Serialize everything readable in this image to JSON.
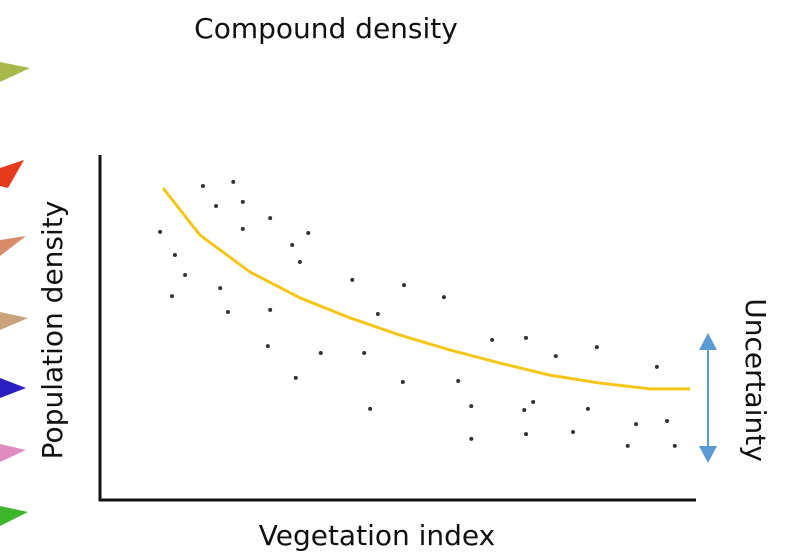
{
  "chart_data": {
    "type": "scatter",
    "title": "Compound density",
    "x_label": "Vegetation index",
    "y_label": "Population density",
    "annotation": "Uncertainty",
    "xlim": [
      0,
      100
    ],
    "ylim": [
      0,
      100
    ],
    "points": {
      "color": "#333333",
      "x": [
        10.1,
        12.6,
        14.3,
        12.1,
        17.3,
        19.5,
        22.4,
        24.0,
        24.0,
        20.2,
        21.5,
        28.6,
        32.3,
        33.6,
        35.0,
        28.6,
        28.2,
        32.9,
        37.1,
        42.4,
        46.7,
        44.4,
        45.4,
        51.1,
        50.9,
        57.8,
        60.2,
        62.4,
        62.4,
        65.9,
        71.6,
        71.3,
        72.8,
        71.6,
        76.6,
        79.5,
        82.0,
        83.5,
        88.7,
        90.1,
        93.6,
        95.3,
        96.6
      ],
      "y": [
        77.7,
        71.0,
        65.2,
        59.1,
        91.0,
        85.2,
        92.2,
        86.4,
        78.6,
        61.4,
        54.5,
        81.7,
        73.9,
        69.0,
        77.4,
        55.1,
        44.6,
        35.4,
        42.6,
        63.8,
        53.9,
        42.6,
        26.4,
        62.3,
        34.2,
        58.8,
        34.5,
        27.2,
        17.7,
        46.4,
        47.0,
        26.1,
        28.4,
        19.1,
        41.7,
        19.7,
        26.4,
        44.3,
        15.7,
        22.0,
        38.6,
        22.9,
        15.7
      ]
    },
    "curve": {
      "color": "#f5c518",
      "x": [
        10.6,
        16.8,
        25.2,
        33.6,
        42.0,
        50.4,
        58.8,
        67.2,
        75.6,
        84.0,
        92.4,
        99.2
      ],
      "y": [
        90.4,
        76.8,
        66.1,
        58.6,
        52.8,
        47.8,
        43.5,
        39.7,
        36.2,
        33.9,
        32.2,
        32.2
      ]
    }
  }
}
